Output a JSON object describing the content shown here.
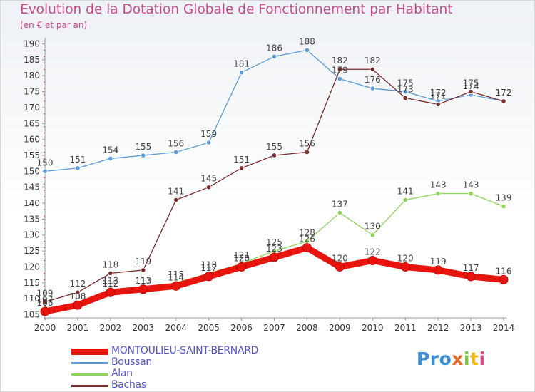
{
  "title": "Evolution de la Dotation Globale de Fonctionnement par Habitant",
  "subtitle": "(en € et par an)",
  "logo_text": "Proxiti",
  "chart_data": {
    "type": "line",
    "x": [
      2000,
      2001,
      2002,
      2003,
      2004,
      2005,
      2006,
      2007,
      2008,
      2009,
      2010,
      2011,
      2012,
      2013,
      2014
    ],
    "ylim": [
      104,
      191
    ],
    "yticks": [
      105,
      110,
      115,
      120,
      125,
      130,
      135,
      140,
      145,
      150,
      155,
      160,
      165,
      170,
      175,
      180,
      185,
      190
    ],
    "grid": false,
    "legend_position": "bottom-left",
    "series": [
      {
        "name": "MONTOULIEU-SAINT-BERNARD",
        "color": "#e8150f",
        "values": [
          106,
          108,
          112,
          113,
          114,
          117,
          120,
          123,
          126,
          120,
          122,
          120,
          119,
          117,
          116
        ],
        "labels": [
          "106",
          "108",
          "112",
          "113",
          "114",
          "117",
          "120",
          "123",
          "126",
          "120",
          "122",
          "120",
          "119",
          "117",
          "116"
        ]
      },
      {
        "name": "Boussan",
        "color": "#5b9bd5",
        "values": [
          150,
          151,
          154,
          155,
          156,
          159,
          181,
          186,
          188,
          179,
          176,
          175,
          172,
          174,
          172
        ],
        "labels": [
          "150",
          "151",
          "154",
          "155",
          "156",
          "159",
          "181",
          "186",
          "188",
          "179",
          "176",
          "175",
          "172",
          "174",
          "172"
        ]
      },
      {
        "name": "Alan",
        "color": "#8fd45a",
        "values": [
          107,
          108,
          113,
          113,
          115,
          118,
          121,
          125,
          128,
          137,
          130,
          141,
          143,
          143,
          139
        ],
        "labels": [
          "107",
          "108",
          "113",
          "113",
          "115",
          "118",
          "121",
          "125",
          "128",
          "137",
          "130",
          "141",
          "143",
          "143",
          "139"
        ]
      },
      {
        "name": "Bachas",
        "color": "#7a2b2b",
        "values": [
          109,
          112,
          118,
          119,
          141,
          145,
          151,
          155,
          156,
          182,
          182,
          173,
          171,
          175,
          172
        ],
        "labels": [
          "109",
          "112",
          "118",
          "119",
          "141",
          "145",
          "151",
          "155",
          "156",
          "182",
          "182",
          "173",
          "171",
          "175",
          "172"
        ]
      }
    ]
  }
}
